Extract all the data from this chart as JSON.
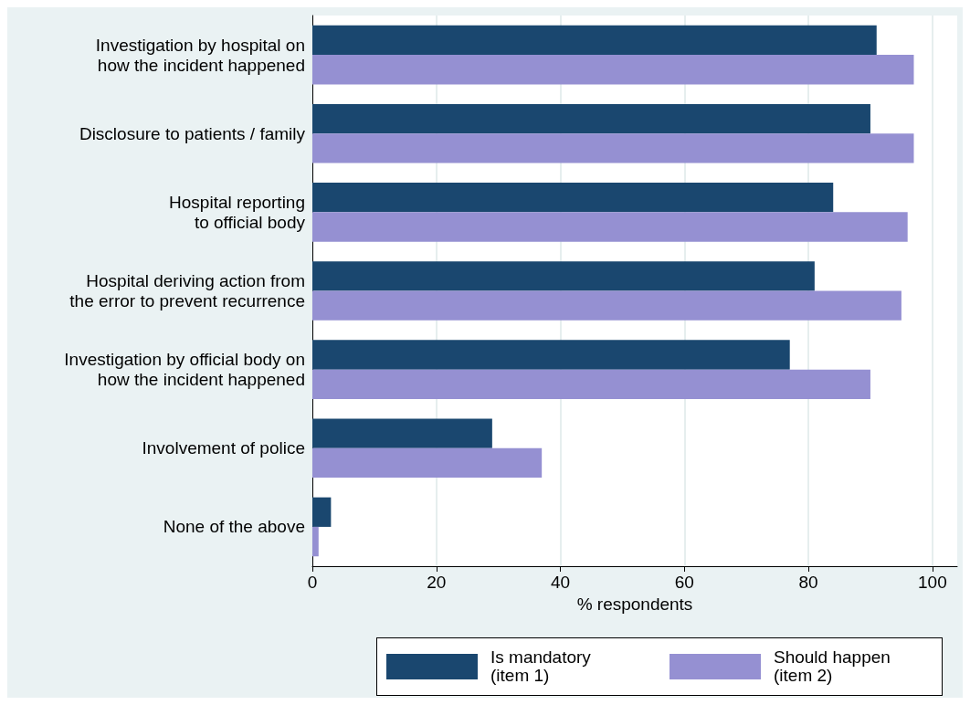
{
  "chart_data": {
    "type": "bar",
    "orientation": "horizontal",
    "xlabel": "% respondents",
    "categories": [
      "Investigation by hospital on\nhow the incident happened",
      "Disclosure to patients / family",
      "Hospital reporting\nto official body",
      "Hospital deriving action from\nthe error to prevent recurrence",
      "Investigation by official body on\nhow the incident happened",
      "Involvement of police",
      "None of the above"
    ],
    "series": [
      {
        "name": "Is mandatory\n(item 1)",
        "color": "#1a476f",
        "values": [
          91,
          90,
          84,
          81,
          77,
          29,
          3
        ]
      },
      {
        "name": "Should happen\n(item 2)",
        "color": "#9590d2",
        "values": [
          97,
          97,
          96,
          95,
          90,
          37,
          1
        ]
      }
    ],
    "xlim": [
      0,
      104
    ],
    "xticks": [
      0,
      20,
      40,
      60,
      80,
      100
    ],
    "grid": "x",
    "legend": "bottom"
  }
}
